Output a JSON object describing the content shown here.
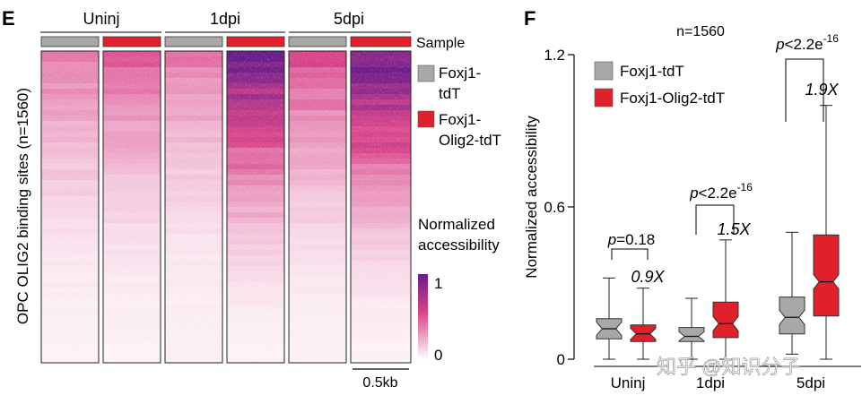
{
  "colors": {
    "control": "#a8a8a8",
    "olig2": "#e0202a",
    "heat_high": "#7b1e8e",
    "heat_mid": "#e05a8a",
    "heat_low": "#ffffff"
  },
  "panel_e": {
    "letter": "E",
    "groups": [
      "Uninj",
      "1dpi",
      "5dpi"
    ],
    "sample_label": "Sample",
    "y_label": "OPC OLIG2 binding sites (n=1560)",
    "legend": [
      {
        "line1": "Foxj1-",
        "line2": "tdT"
      },
      {
        "line1": "Foxj1-",
        "line2": "Olig2-tdT"
      }
    ],
    "colorbar_title_1": "Normalized",
    "colorbar_title_2": "accessibility",
    "colorbar_max": "1",
    "colorbar_min": "0",
    "scale_bar": "0.5kb",
    "heatmap_intensity": [
      0.35,
      0.42,
      0.35,
      0.95,
      0.5,
      1.0
    ]
  },
  "chart_data": {
    "type": "box",
    "panel_letter": "F",
    "title": "n=1560",
    "ylabel": "Normalized accessibility",
    "ylim": [
      0,
      1.2
    ],
    "yticks": [
      "0",
      "0.6",
      "1.2"
    ],
    "categories": [
      "Uninj",
      "1dpi",
      "5dpi"
    ],
    "series": [
      {
        "name": "Foxj1-tdT",
        "boxes": [
          {
            "min": 0.0,
            "q1": 0.08,
            "median": 0.12,
            "q3": 0.16,
            "max": 0.32
          },
          {
            "min": 0.0,
            "q1": 0.07,
            "median": 0.09,
            "q3": 0.125,
            "max": 0.24
          },
          {
            "min": 0.02,
            "q1": 0.1,
            "median": 0.165,
            "q3": 0.245,
            "max": 0.5
          }
        ]
      },
      {
        "name": "Foxj1-Olig2-tdT",
        "boxes": [
          {
            "min": 0.0,
            "q1": 0.07,
            "median": 0.1,
            "q3": 0.135,
            "max": 0.28
          },
          {
            "min": 0.0,
            "q1": 0.085,
            "median": 0.14,
            "q3": 0.225,
            "max": 0.47
          },
          {
            "min": 0.0,
            "q1": 0.17,
            "median": 0.305,
            "q3": 0.49,
            "max": 1.0
          }
        ]
      }
    ],
    "annotations": [
      {
        "p_prefix": "p",
        "p_text": "=0.18",
        "fold": "0.9X"
      },
      {
        "p_prefix": "p",
        "p_text": "<2.2e",
        "p_sup": "-16",
        "fold": "1.5X"
      },
      {
        "p_prefix": "p",
        "p_text": "<2.2e",
        "p_sup": "-16",
        "fold": "1.9X"
      }
    ]
  },
  "watermark": "知乎 @知识分子"
}
